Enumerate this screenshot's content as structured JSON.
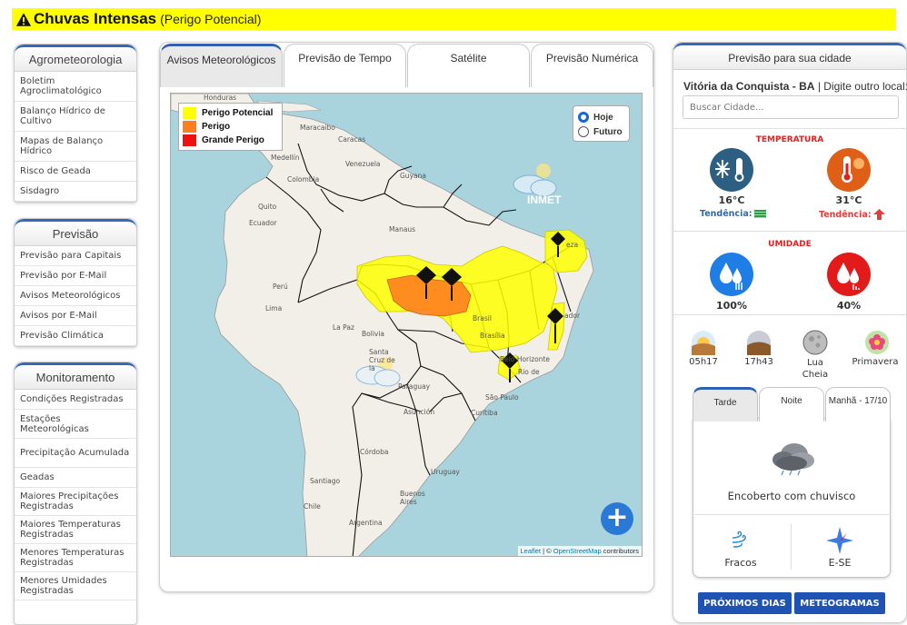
{
  "alert": {
    "title": "Chuvas Intensas",
    "subtitle": "(Perigo Potencial)"
  },
  "sidebar": {
    "agro": {
      "title": "Agrometeorologia",
      "items": [
        "Boletim Agroclimatológico",
        "Balanço Hídrico de Cultivo",
        "Mapas de Balanço Hídrico",
        "Risco de Geada",
        "Sisdagro"
      ]
    },
    "previsao": {
      "title": "Previsão",
      "items": [
        "Previsão para Capitais",
        "Previsão por E-Mail",
        "Avisos Meteorológicos",
        "Avisos por E-Mail",
        "Previsão Climática"
      ]
    },
    "monitoramento": {
      "title": "Monitoramento",
      "items": [
        "Condições Registradas",
        "Estações Meteorológicas",
        "Precipitação Acumulada",
        "Geadas",
        "Maiores Precipitações Registradas",
        "Maiores Temperaturas Registradas",
        "Menores Temperaturas Registradas",
        "Menores Umidades Registradas"
      ]
    }
  },
  "tabs": [
    {
      "label": "Avisos Meteorológicos",
      "active": true
    },
    {
      "label": "Previsão de Tempo",
      "active": false
    },
    {
      "label": "Satélite",
      "active": false
    },
    {
      "label": "Previsão Numérica",
      "active": false
    }
  ],
  "map": {
    "legend": [
      {
        "label": "Perigo Potencial",
        "color": "#ffff00"
      },
      {
        "label": "Perigo",
        "color": "#ff7f1e"
      },
      {
        "label": "Grande Perigo",
        "color": "#ee1111"
      }
    ],
    "radio": {
      "options": [
        "Hoje",
        "Futuro"
      ],
      "selected": "Hoje"
    },
    "watermark": "INMET",
    "labels": {
      "honduras": "Honduras",
      "maracaibo": "Maracaibo",
      "caracas": "Caracas",
      "medellin": "Medellín",
      "venezuela": "Venezuela",
      "colombia": "Colombia",
      "guyana": "Guyana",
      "quito": "Quito",
      "ecuador": "Ecuador",
      "manaus": "Manaus",
      "peru": "Perú",
      "lima": "Lima",
      "lapaz": "La Paz",
      "bolivia": "Bolivia",
      "santacruz": "Santa Cruz de la",
      "brasil": "Brasil",
      "brasilia": "Brasília",
      "fortaleza": "eza",
      "salvador": "ador",
      "belohorizonte": "Belo Horizonte",
      "rio": "Rio de",
      "saopaulo": "São Paulo",
      "paraguay": "Paraguay",
      "asuncion": "Asunción",
      "curitiba": "Curitiba",
      "cordoba": "Córdoba",
      "uruguay": "Uruguay",
      "santiago": "Santiago",
      "buenosaires": "Buenos Aires",
      "chile": "Chile",
      "argentina": "Argentina"
    },
    "zoom_label": "+",
    "attribution": {
      "leaflet": "Leaflet",
      "sep": " | © ",
      "osm": "OpenStreetMap",
      "rest": " contributors"
    }
  },
  "city_forecast": {
    "title": "Previsão para sua cidade",
    "city": "Vitória da Conquista - BA",
    "other_prompt": "| Digite outro local:",
    "search_placeholder": "Buscar Cidade...",
    "temperature": {
      "label": "TEMPERATURA",
      "min": "16°C",
      "max": "31°C",
      "trend_label": "Tendência:"
    },
    "humidity": {
      "label": "UMIDADE",
      "max": "100%",
      "min": "40%"
    },
    "astro": [
      {
        "label": "05h17",
        "icon": "sunrise-icon"
      },
      {
        "label": "17h43",
        "icon": "sunset-icon"
      },
      {
        "label": "Lua Cheia",
        "icon": "full-moon-icon"
      },
      {
        "label": "Primavera",
        "icon": "spring-flower-icon"
      }
    ],
    "period_tabs": [
      {
        "label": "Tarde",
        "active": true
      },
      {
        "label": "Noite",
        "active": false
      },
      {
        "label": "Manhã - 17/10",
        "active": false
      }
    ],
    "condition": "Encoberto com chuvisco",
    "wind": {
      "intensity": "Fracos",
      "direction": "E-SE"
    },
    "buttons": {
      "next_days": "PRÓXIMOS DIAS",
      "meteograms": "METEOGRAMAS"
    },
    "colors": {
      "cold": "#2d5f83",
      "hot": "#e05f17",
      "humid_high": "#1e7ee6",
      "humid_low": "#e21a1a",
      "trend_cold": "#2e9a4a",
      "trend_hot": "#e53b3b",
      "alert": "#e02020",
      "button": "#1f53b3"
    }
  }
}
